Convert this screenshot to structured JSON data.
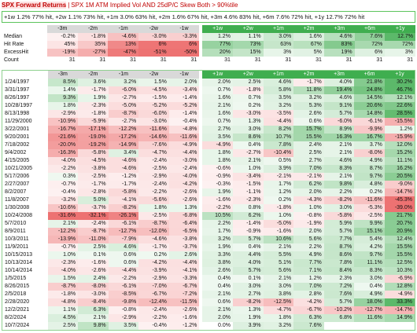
{
  "header": {
    "title": "SPX Forward Returns",
    "separator": "|",
    "subtitle": "SPX 1M ATM Implied Vol AND 25dP/C Skew Both > 90%tile",
    "summary_line": "+1w 1.2% 77% hit, +2w 1.1% 73% hit, +1m 3.0% 63% hit, +2m 1.6% 67% hit, +3m 4.6% 83% hit, +6m 7.6% 72% hit, +1y 12.7% 72% hit"
  },
  "summary": {
    "columns": [
      "-3m",
      "-2m",
      "-1m",
      "-2w",
      "-1w",
      "+1w",
      "+2w",
      "+1m",
      "+2m",
      "+3m",
      "+6m",
      "+1y"
    ],
    "rows": [
      {
        "label": "Median",
        "cells": [
          "-0.2%",
          "-1.8%",
          "-4.6%",
          "-3.0%",
          "-3.3%",
          "1.2%",
          "1.1%",
          "3.0%",
          "1.6%",
          "4.6%",
          "7.6%",
          "12.7%"
        ]
      },
      {
        "label": "Hit Rate",
        "cells": [
          "45%",
          "35%",
          "13%",
          "6%",
          "6%",
          "77%",
          "73%",
          "63%",
          "67%",
          "83%",
          "72%",
          "72%"
        ]
      },
      {
        "label": "ExcessHit",
        "cells": [
          "-19%",
          "-27%",
          "-47%",
          "-51%",
          "-50%",
          "20%",
          "15%",
          "3%",
          "5%",
          "19%",
          "6%",
          "3%"
        ]
      },
      {
        "label": "Count",
        "cells": [
          "31",
          "31",
          "31",
          "31",
          "31",
          "31",
          "31",
          "31",
          "31",
          "31",
          "31",
          "31"
        ]
      }
    ]
  },
  "table": {
    "columns": [
      "-3m",
      "-2m",
      "-1m",
      "-2w",
      "-1w",
      "+1w",
      "+2w",
      "+1m",
      "+2m",
      "+3m",
      "+6m",
      "+1y"
    ],
    "rows": [
      {
        "date": "1/24/1997",
        "cells": [
          "8.5%",
          "3.6%",
          "3.2%",
          "1.5%",
          "2.0%",
          "2.0%",
          "2.5%",
          "4.6%",
          "-1.7%",
          "4.0%",
          "21.8%",
          "30.2%"
        ]
      },
      {
        "date": "3/31/1997",
        "cells": [
          "1.4%",
          "-1.7%",
          "-6.0%",
          "-4.5%",
          "-3.4%",
          "0.7%",
          "-1.8%",
          "5.8%",
          "11.8%",
          "19.4%",
          "24.8%",
          "46.7%"
        ]
      },
      {
        "date": "8/26/1997",
        "cells": [
          "9.3%",
          "1.9%",
          "-2.7%",
          "-1.5%",
          "-1.4%",
          "1.6%",
          "0.7%",
          "3.5%",
          "3.2%",
          "4.6%",
          "14.5%",
          "12.1%"
        ]
      },
      {
        "date": "10/28/1997",
        "cells": [
          "1.8%",
          "-2.3%",
          "-5.0%",
          "-5.2%",
          "-5.2%",
          "2.1%",
          "0.2%",
          "3.2%",
          "5.3%",
          "9.1%",
          "20.6%",
          "22.6%"
        ]
      },
      {
        "date": "8/13/1998",
        "cells": [
          "-2.9%",
          "-1.8%",
          "-8.7%",
          "-6.0%",
          "-1.4%",
          "1.6%",
          "-3.0%",
          "-3.5%",
          "2.6%",
          "5.7%",
          "14.8%",
          "28.5%"
        ]
      },
      {
        "date": "11/29/2000",
        "cells": [
          "-10.9%",
          "-5.9%",
          "-2.7%",
          "-3.0%",
          "-0.4%",
          "0.7%",
          "1.3%",
          "-4.4%",
          "0.6%",
          "-6.0%",
          "-6.1%",
          "-15.5%"
        ]
      },
      {
        "date": "3/22/2001",
        "cells": [
          "-16.7%",
          "-17.1%",
          "-12.2%",
          "-11.6%",
          "-4.8%",
          "2.7%",
          "3.0%",
          "8.2%",
          "15.7%",
          "8.9%",
          "-9.9%",
          "1.2%"
        ]
      },
      {
        "date": "9/20/2001",
        "cells": [
          "-21.6%",
          "-19.0%",
          "-17.2%",
          "-14.6%",
          "-11.6%",
          "3.5%",
          "8.6%",
          "10.7%",
          "15.5%",
          "16.3%",
          "16.7%",
          "-15.9%"
        ]
      },
      {
        "date": "7/18/2002",
        "cells": [
          "-20.0%",
          "-19.2%",
          "-14.9%",
          "-7.6%",
          "-4.9%",
          "-4.9%",
          "0.4%",
          "7.8%",
          "2.4%",
          "2.1%",
          "3.7%",
          "12.0%"
        ]
      },
      {
        "date": "9/4/2002",
        "cells": [
          "-16.3%",
          "-5.8%",
          "3.4%",
          "-4.7%",
          "-4.4%",
          "1.8%",
          "-2.7%",
          "-10.4%",
          "2.5%",
          "2.1%",
          "-8.0%",
          "15.2%"
        ]
      },
      {
        "date": "4/15/2005",
        "cells": [
          "-4.0%",
          "-4.5%",
          "-4.6%",
          "-2.4%",
          "-3.0%",
          "1.8%",
          "2.1%",
          "0.5%",
          "2.7%",
          "4.6%",
          "4.9%",
          "11.1%"
        ]
      },
      {
        "date": "10/21/2005",
        "cells": [
          "-2.2%",
          "-3.8%",
          "-4.6%",
          "-2.5%",
          "-2.4%",
          "-0.6%",
          "1.0%",
          "3.9%",
          "7.0%",
          "8.3%",
          "8.7%",
          "16.2%"
        ]
      },
      {
        "date": "5/17/2006",
        "cells": [
          "0.3%",
          "-2.5%",
          "-1.2%",
          "-2.9%",
          "-4.0%",
          "-0.9%",
          "-3.4%",
          "-2.1%",
          "-2.1%",
          "2.1%",
          "9.7%",
          "20.5%"
        ]
      },
      {
        "date": "2/27/2007",
        "cells": [
          "-0.7%",
          "-1.7%",
          "-1.7%",
          "-2.4%",
          "-4.2%",
          "-0.3%",
          "-1.5%",
          "1.7%",
          "6.2%",
          "9.8%",
          "4.8%",
          "-9.0%"
        ]
      },
      {
        "date": "8/2/2007",
        "cells": [
          "-0.4%",
          "-2.8%",
          "-5.8%",
          "-2.2%",
          "-2.6%",
          "1.9%",
          "-1.1%",
          "1.2%",
          "2.0%",
          "2.2%",
          "0.2%",
          "-14.7%"
        ]
      },
      {
        "date": "11/8/2007",
        "cells": [
          "-3.2%",
          "5.0%",
          "-4.1%",
          "-5.6%",
          "-2.6%",
          "-1.6%",
          "-2.3%",
          "0.2%",
          "-4.3%",
          "-8.2%",
          "-11.6%",
          "-45.3%"
        ]
      },
      {
        "date": "1/30/2008",
        "cells": [
          "-10.6%",
          "-3.7%",
          "-8.2%",
          "1.8%",
          "1.3%",
          "-2.2%",
          "0.8%",
          "-1.8%",
          "1.0%",
          "3.0%",
          "-5.3%",
          "-39.0%"
        ]
      },
      {
        "date": "10/24/2008",
        "cells": [
          "-31.6%",
          "-32.1%",
          "-26.1%",
          "-2.5%",
          "-6.8%",
          "10.5%",
          "6.2%",
          "1.0%",
          "-0.8%",
          "-5.8%",
          "-2.5%",
          "21.7%"
        ]
      },
      {
        "date": "5/7/2010",
        "cells": [
          "2.1%",
          "-2.4%",
          "-6.1%",
          "-8.7%",
          "-6.4%",
          "2.2%",
          "-1.4%",
          "-5.0%",
          "-1.9%",
          "5.9%",
          "9.9%",
          "20.7%"
        ]
      },
      {
        "date": "8/9/2011",
        "cells": [
          "-12.2%",
          "-8.7%",
          "-12.7%",
          "-12.0%",
          "-6.5%",
          "1.7%",
          "-0.9%",
          "-1.6%",
          "2.0%",
          "5.7%",
          "15.1%",
          "20.9%"
        ]
      },
      {
        "date": "10/3/2011",
        "cells": [
          "-13.9%",
          "-11.0%",
          "-7.9%",
          "-4.6%",
          "-3.8%",
          "3.2%",
          "5.7%",
          "10.6%",
          "5.6%",
          "7.7%",
          "5.4%",
          "12.4%"
        ]
      },
      {
        "date": "11/9/2011",
        "cells": [
          "-0.7%",
          "2.5%",
          "4.6%",
          "-1.7%",
          "-3.7%",
          "1.9%",
          "0.4%",
          "2.1%",
          "2.2%",
          "8.7%",
          "4.2%",
          "15.5%"
        ]
      },
      {
        "date": "10/15/2013",
        "cells": [
          "1.0%",
          "0.1%",
          "0.6%",
          "0.2%",
          "2.6%",
          "3.3%",
          "4.4%",
          "5.5%",
          "4.9%",
          "8.6%",
          "9.7%",
          "15.5%"
        ]
      },
      {
        "date": "10/13/2014",
        "cells": [
          "-2.3%",
          "-1.6%",
          "0.6%",
          "-4.2%",
          "-4.4%",
          "3.8%",
          "4.0%",
          "5.1%",
          "7.7%",
          "7.8%",
          "11.1%",
          "12.5%"
        ]
      },
      {
        "date": "10/14/2014",
        "cells": [
          "-4.0%",
          "-2.6%",
          "-4.4%",
          "-3.9%",
          "-4.1%",
          "2.6%",
          "5.7%",
          "5.6%",
          "7.1%",
          "8.4%",
          "8.3%",
          "10.3%"
        ]
      },
      {
        "date": "1/5/2015",
        "cells": [
          "1.5%",
          "2.4%",
          "-2.2%",
          "-2.9%",
          "-3.3%",
          "0.4%",
          "0.1%",
          "2.1%",
          "1.2%",
          "2.3%",
          "3.0%",
          "-6.9%"
        ]
      },
      {
        "date": "8/26/2015",
        "cells": [
          "-8.7%",
          "-8.0%",
          "-6.1%",
          "-7.0%",
          "-6.7%",
          "0.4%",
          "3.0%",
          "3.0%",
          "7.0%",
          "7.2%",
          "0.4%",
          "12.8%"
        ]
      },
      {
        "date": "2/5/2018",
        "cells": [
          "-1.8%",
          "-3.0%",
          "-8.5%",
          "-6.7%",
          "-7.2%",
          "2.1%",
          "2.7%",
          "3.8%",
          "2.8%",
          "7.6%",
          "4.9%",
          "-4.9%"
        ]
      },
      {
        "date": "2/28/2020",
        "cells": [
          "-4.8%",
          "-8.4%",
          "-9.8%",
          "-12.4%",
          "-11.5%",
          "0.6%",
          "-8.2%",
          "-12.5%",
          "-4.2%",
          "5.7%",
          "18.0%",
          "33.3%"
        ]
      },
      {
        "date": "12/2/2021",
        "cells": [
          "1.1%",
          "6.3%",
          "-0.8%",
          "-2.4%",
          "-2.6%",
          "2.1%",
          "1.3%",
          "-4.7%",
          "-6.7%",
          "-10.2%",
          "-12.7%",
          "-14.7%"
        ]
      },
      {
        "date": "8/2/2024",
        "cells": [
          "4.5%",
          "2.1%",
          "-2.9%",
          "-2.2%",
          "-1.6%",
          "2.0%",
          "1.9%",
          "1.8%",
          "6.3%",
          "6.8%",
          "11.6%",
          "14.9%"
        ]
      },
      {
        "date": "10/7/2024",
        "cells": [
          "2.5%",
          "9.8%",
          "3.5%",
          "-0.4%",
          "-1.2%",
          "0.0%",
          "3.9%",
          "3.2%",
          "7.6%",
          "",
          "",
          ""
        ]
      }
    ]
  }
}
